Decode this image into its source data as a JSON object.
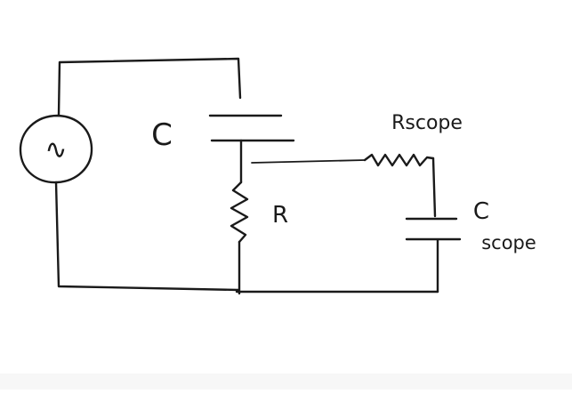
{
  "diagram": {
    "ink_color": "#1a1a1a",
    "background_color": "#ffffff",
    "labels": {
      "capacitor_main": "C",
      "resistor_main": "R",
      "resistor_scope": "Rscope",
      "capacitor_scope_symbol": "C",
      "capacitor_scope_suffix": "scope"
    },
    "source_symbol": "∿"
  }
}
